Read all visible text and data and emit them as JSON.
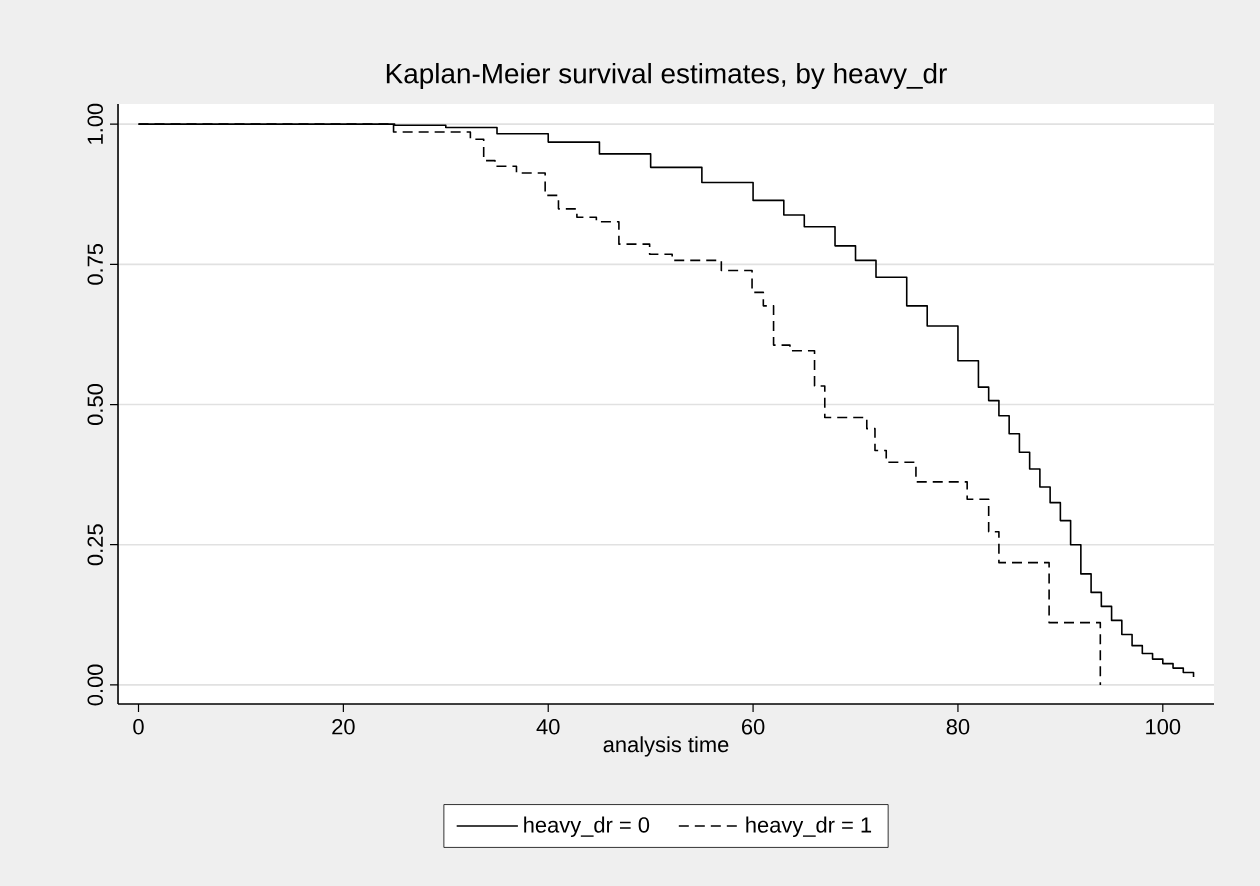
{
  "chart_data": {
    "type": "step",
    "title": "Kaplan-Meier survival estimates, by heavy_dr",
    "xlabel": "analysis time",
    "xlim": [
      -2,
      105
    ],
    "ylim": [
      -0.034,
      1.036
    ],
    "xticks": [
      0,
      20,
      40,
      60,
      80,
      100
    ],
    "yticks": [
      {
        "value": 0,
        "label": "0.00"
      },
      {
        "value": 0.25,
        "label": "0.25"
      },
      {
        "value": 0.5,
        "label": "0.50"
      },
      {
        "value": 0.75,
        "label": "0.75"
      },
      {
        "value": 1,
        "label": "1.00"
      }
    ],
    "grid": "y",
    "legend": "bottom",
    "series": [
      {
        "name": "heavy_dr = 0",
        "color": "#000000",
        "line_style": "solid",
        "x": [
          0,
          20,
          25,
          30,
          35,
          40,
          45,
          50,
          55,
          60,
          63,
          65,
          68,
          70,
          72,
          75,
          77,
          80,
          82,
          83,
          84,
          85,
          86,
          87,
          88,
          89,
          90,
          91,
          92,
          93,
          94,
          95,
          96,
          97,
          98,
          99,
          100,
          101,
          102,
          103
        ],
        "values": [
          1,
          1,
          0.998,
          0.994,
          0.983,
          0.968,
          0.947,
          0.923,
          0.896,
          0.864,
          0.838,
          0.817,
          0.783,
          0.757,
          0.727,
          0.676,
          0.64,
          0.578,
          0.531,
          0.507,
          0.48,
          0.448,
          0.415,
          0.385,
          0.353,
          0.325,
          0.293,
          0.25,
          0.198,
          0.165,
          0.14,
          0.115,
          0.09,
          0.07,
          0.056,
          0.046,
          0.038,
          0.03,
          0.022,
          0.014
        ]
      },
      {
        "name": "heavy_dr = 1",
        "color": "#000000",
        "line_style": "dashed",
        "x": [
          0,
          24.9,
          32.4,
          33.7,
          34.8,
          36.9,
          39.7,
          41.0,
          42.8,
          44.7,
          46.9,
          49.9,
          52.1,
          56.9,
          59.9,
          61.0,
          62.0,
          63.6,
          66.0,
          67.0,
          71.1,
          71.9,
          73.0,
          75.9,
          80.9,
          83.0,
          84.0,
          88.9,
          93.9
        ],
        "values": [
          1,
          0.986,
          0.973,
          0.935,
          0.925,
          0.913,
          0.873,
          0.849,
          0.834,
          0.826,
          0.786,
          0.768,
          0.757,
          0.739,
          0.7,
          0.676,
          0.606,
          0.596,
          0.533,
          0.477,
          0.457,
          0.418,
          0.397,
          0.362,
          0.331,
          0.273,
          0.218,
          0.111,
          0
        ]
      }
    ]
  }
}
